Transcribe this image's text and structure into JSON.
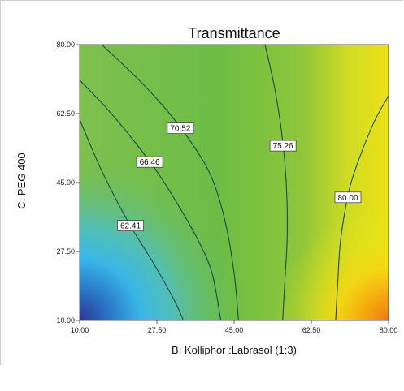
{
  "chart_data": {
    "type": "heatmap",
    "subtype": "contour",
    "title": "Transmittance",
    "xlabel": "B: Kolliphor :Labrasol (1:3)",
    "ylabel": "C: PEG 400",
    "xlim": [
      10,
      80
    ],
    "ylim": [
      10,
      80
    ],
    "x_ticks": [
      "10.00",
      "27.50",
      "45.00",
      "62.50",
      "80.00"
    ],
    "y_ticks": [
      "10.00",
      "27.50",
      "45.00",
      "62.50",
      "80.00"
    ],
    "contours": [
      {
        "level": 62.41,
        "label": "62.41",
        "points": [
          [
            10,
            61
          ],
          [
            15,
            48
          ],
          [
            21,
            35
          ],
          [
            27,
            24
          ],
          [
            31.5,
            15
          ],
          [
            33.5,
            10
          ]
        ]
      },
      {
        "level": 66.46,
        "label": "66.46",
        "points": [
          [
            10,
            71
          ],
          [
            16,
            64
          ],
          [
            22,
            56
          ],
          [
            28,
            47
          ],
          [
            33,
            38
          ],
          [
            37,
            30
          ],
          [
            40,
            22
          ],
          [
            42,
            10
          ]
        ]
      },
      {
        "level": 70.52,
        "label": "70.52",
        "points": [
          [
            15,
            80
          ],
          [
            23,
            71.5
          ],
          [
            30,
            63
          ],
          [
            36,
            54
          ],
          [
            40,
            46
          ],
          [
            43,
            35
          ],
          [
            45,
            22
          ],
          [
            46,
            10
          ]
        ]
      },
      {
        "level": 75.26,
        "label": "75.26",
        "points": [
          [
            52,
            80
          ],
          [
            54,
            70
          ],
          [
            55.5,
            60
          ],
          [
            56.5,
            50
          ],
          [
            57,
            40
          ],
          [
            57,
            30
          ],
          [
            56.5,
            20
          ],
          [
            56,
            10
          ]
        ]
      },
      {
        "level": 80.0,
        "label": "80.00",
        "points": [
          [
            80,
            67
          ],
          [
            77,
            61
          ],
          [
            74,
            53
          ],
          [
            71.5,
            45
          ],
          [
            70,
            37
          ],
          [
            69,
            29
          ],
          [
            68.5,
            20
          ],
          [
            68,
            10
          ]
        ]
      }
    ],
    "colorscale": [
      "#2e3f9b",
      "#2da3dc",
      "#45c3e6",
      "#5fbe7b",
      "#6cbd45",
      "#76be3c",
      "#b4d22a",
      "#f2e614",
      "#f6c610",
      "#ee7b14"
    ]
  }
}
